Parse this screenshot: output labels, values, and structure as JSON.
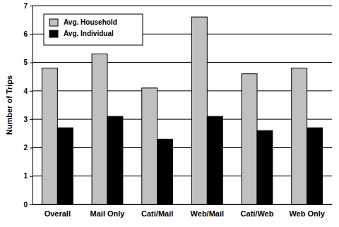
{
  "chart_data": {
    "type": "bar",
    "y_label": "Number of Trips",
    "categories": [
      "Overall",
      "Mail Only",
      "Cati/Mail",
      "Web/Mail",
      "Cati/Web",
      "Web Only"
    ],
    "series": [
      {
        "name": "Avg. Household",
        "color": "#c0c0c0",
        "values": [
          4.8,
          5.3,
          4.1,
          6.6,
          4.6,
          4.8
        ]
      },
      {
        "name": "Avg. Individual",
        "color": "#000000",
        "values": [
          2.7,
          3.1,
          2.3,
          3.1,
          2.6,
          2.7
        ]
      }
    ],
    "ylim": [
      0,
      7
    ],
    "yticks": [
      0,
      1,
      2,
      3,
      4,
      5,
      6,
      7
    ],
    "grid": true,
    "legend": "top-left"
  }
}
